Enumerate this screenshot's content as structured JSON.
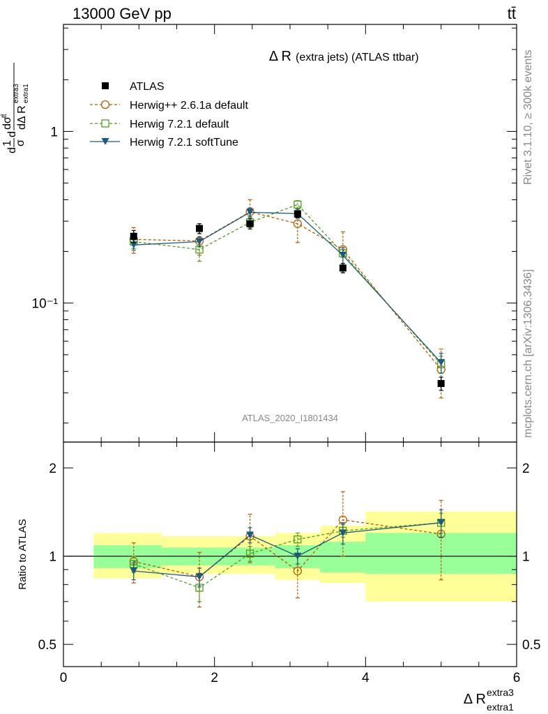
{
  "header": {
    "left": "13000 GeV pp",
    "right": "tt̄"
  },
  "side": {
    "rivet": "Rivet 3.1.10, ≥ 300k events",
    "mcplots": "mcplots.cern.ch [arXiv:1306.3436]"
  },
  "chart_data": [
    {
      "type": "scatter",
      "title": "Δ R (extra jets) (ATLAS ttbar)",
      "title_main": "Δ R",
      "title_rest": "(extra jets) (ATLAS ttbar)",
      "watermark": "ATLAS_2020_I1801434",
      "ylabel": "1/σ dσ^tt̄ / dΔ R^extra3_extra1",
      "yscale": "log",
      "xlim": [
        0,
        6
      ],
      "ylim": [
        0.0155,
        4.2
      ],
      "yticks": [
        {
          "v": 1,
          "label": "1"
        },
        {
          "v": 0.1,
          "label": "10⁻¹"
        }
      ],
      "legend_position": "top-left",
      "series": [
        {
          "name": "ATLAS",
          "color": "#000000",
          "marker": "filled-square",
          "line": "none",
          "x": [
            0.93,
            1.8,
            2.47,
            3.1,
            3.7,
            5.0
          ],
          "y": [
            0.245,
            0.272,
            0.29,
            0.33,
            0.16,
            0.034
          ],
          "err": [
            0.02,
            0.018,
            0.02,
            0.015,
            0.01,
            0.003
          ]
        },
        {
          "name": "Herwig++ 2.6.1a default",
          "color": "#b35c00",
          "marker": "open-circle",
          "line": "dashed",
          "x": [
            0.93,
            1.8,
            2.47,
            3.1,
            3.7,
            5.0
          ],
          "y": [
            0.235,
            0.23,
            0.34,
            0.29,
            0.205,
            0.041
          ],
          "err": [
            0.04,
            0.04,
            0.06,
            0.065,
            0.055,
            0.013
          ]
        },
        {
          "name": "Herwig 7.2.1 default",
          "color": "#4d9e1a",
          "marker": "open-square",
          "line": "dashed",
          "x": [
            0.93,
            1.8,
            2.47,
            3.1,
            3.7,
            5.0
          ],
          "y": [
            0.228,
            0.205,
            0.295,
            0.375,
            0.195,
            0.044
          ],
          "err": [
            0.02,
            0.03,
            0.02,
            0.02,
            0.01,
            0.005
          ]
        },
        {
          "name": "Herwig 7.2.1 softTune",
          "color": "#1f5a7a",
          "marker": "filled-triangle-down",
          "line": "solid",
          "x": [
            0.93,
            1.8,
            2.47,
            3.1,
            3.7,
            5.0
          ],
          "y": [
            0.218,
            0.228,
            0.338,
            0.332,
            0.19,
            0.045
          ],
          "err": [
            0.015,
            0.015,
            0.02,
            0.02,
            0.02,
            0.006
          ]
        }
      ]
    },
    {
      "type": "scatter",
      "ylabel": "Ratio to ATLAS",
      "xlabel": "Δ R^extra3_extra1",
      "xlabel_main": "Δ R",
      "xlabel_sup": "extra3",
      "xlabel_sub": "extra1",
      "yscale": "log",
      "xlim": [
        0,
        6
      ],
      "ylim": [
        0.42,
        2.45
      ],
      "xticks": [
        0,
        2,
        4,
        6
      ],
      "yticks": [
        {
          "v": 0.5,
          "label": "0.5"
        },
        {
          "v": 1,
          "label": "1"
        },
        {
          "v": 2,
          "label": "2"
        }
      ],
      "bands": {
        "stat_color": "#99ff99",
        "total_color": "#ffff99",
        "bins": [
          {
            "x0": 0.4,
            "x1": 1.3,
            "stat": [
              0.91,
              1.09
            ],
            "total": [
              0.84,
              1.2
            ]
          },
          {
            "x0": 1.3,
            "x1": 2.1,
            "stat": [
              0.93,
              1.07
            ],
            "total": [
              0.87,
              1.17
            ]
          },
          {
            "x0": 2.1,
            "x1": 2.8,
            "stat": [
              0.93,
              1.07
            ],
            "total": [
              0.87,
              1.17
            ]
          },
          {
            "x0": 2.8,
            "x1": 3.4,
            "stat": [
              0.91,
              1.09
            ],
            "total": [
              0.83,
              1.2
            ]
          },
          {
            "x0": 3.4,
            "x1": 4.0,
            "stat": [
              0.88,
              1.12
            ],
            "total": [
              0.81,
              1.27
            ]
          },
          {
            "x0": 4.0,
            "x1": 6.0,
            "stat": [
              0.87,
              1.2
            ],
            "total": [
              0.7,
              1.42
            ]
          }
        ]
      },
      "series": [
        {
          "name": "Herwig++ 2.6.1a default",
          "x": [
            0.93,
            1.8,
            2.47,
            3.1,
            3.7,
            5.0
          ],
          "y": [
            0.96,
            0.85,
            1.17,
            0.89,
            1.33,
            1.19
          ],
          "err": [
            0.15,
            0.18,
            0.22,
            0.17,
            0.33,
            0.36
          ]
        },
        {
          "name": "Herwig 7.2.1 default",
          "x": [
            0.93,
            1.8,
            2.47,
            3.1,
            3.7,
            5.0
          ],
          "y": [
            0.94,
            0.78,
            1.02,
            1.14,
            1.22,
            1.3
          ],
          "err": [
            0.06,
            0.08,
            0.06,
            0.06,
            0.06,
            0.1
          ]
        },
        {
          "name": "Herwig 7.2.1 softTune",
          "x": [
            0.93,
            1.8,
            2.47,
            3.1,
            3.7,
            5.0
          ],
          "y": [
            0.89,
            0.85,
            1.18,
            1.0,
            1.2,
            1.3
          ],
          "err": [
            0.06,
            0.06,
            0.07,
            0.06,
            0.1,
            0.14
          ]
        }
      ]
    }
  ]
}
